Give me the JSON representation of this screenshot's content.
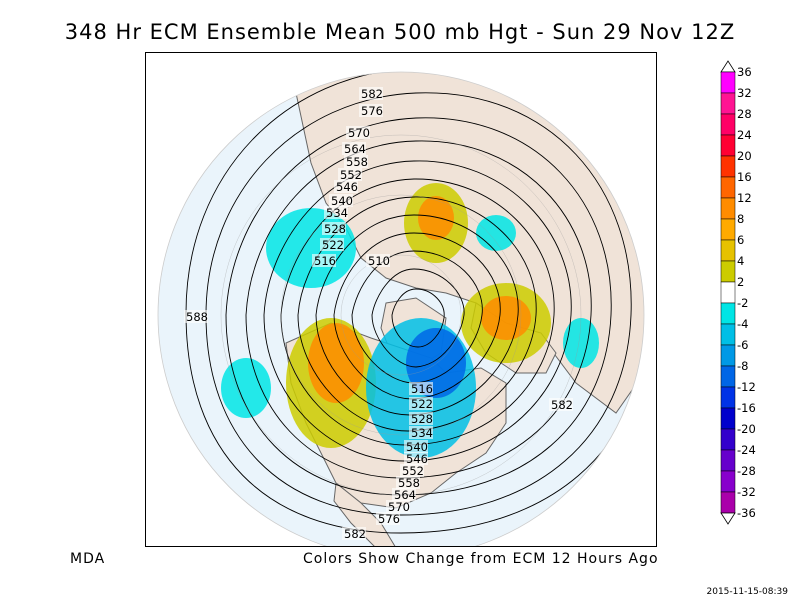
{
  "title": "348 Hr ECM Ensemble Mean 500 mb Hgt - Sun 29 Nov 12Z",
  "footer": {
    "source": "MDA",
    "caption": "Colors Show Change from ECM 12 Hours Ago",
    "timestamp": "2015-11-15-08:39"
  },
  "colorbar": {
    "labels": [
      "36",
      "32",
      "28",
      "24",
      "20",
      "16",
      "12",
      "8",
      "6",
      "4",
      "2",
      "-2",
      "-4",
      "-6",
      "-8",
      "-12",
      "-16",
      "-20",
      "-24",
      "-28",
      "-32",
      "-36"
    ],
    "colors": [
      "#ff00ff",
      "#ff1493",
      "#ff0066",
      "#ff0033",
      "#ff3300",
      "#ff6600",
      "#ff8c00",
      "#ffaa00",
      "#e6c200",
      "#cccc00",
      "#ffffff",
      "#00e5e5",
      "#00bfe6",
      "#0099e6",
      "#0066e6",
      "#0033e6",
      "#0000cc",
      "#3300cc",
      "#6600cc",
      "#8800cc",
      "#aa00aa"
    ]
  },
  "map": {
    "background_ocean": "#eaf4fb",
    "land": "#f0e3d8",
    "contour_labels": [
      {
        "text": "582",
        "pos": "north"
      },
      {
        "text": "576",
        "pos": "north"
      },
      {
        "text": "570",
        "pos": "north"
      },
      {
        "text": "564",
        "pos": "north"
      },
      {
        "text": "558",
        "pos": "north"
      },
      {
        "text": "552",
        "pos": "north"
      },
      {
        "text": "546",
        "pos": "north"
      },
      {
        "text": "540",
        "pos": "north"
      },
      {
        "text": "534",
        "pos": "north"
      },
      {
        "text": "528",
        "pos": "north"
      },
      {
        "text": "522",
        "pos": "north"
      },
      {
        "text": "516",
        "pos": "north"
      },
      {
        "text": "510",
        "pos": "center"
      },
      {
        "text": "588",
        "pos": "west"
      },
      {
        "text": "516",
        "pos": "south"
      },
      {
        "text": "522",
        "pos": "south"
      },
      {
        "text": "528",
        "pos": "south"
      },
      {
        "text": "534",
        "pos": "south"
      },
      {
        "text": "540",
        "pos": "south"
      },
      {
        "text": "546",
        "pos": "south"
      },
      {
        "text": "552",
        "pos": "south"
      },
      {
        "text": "558",
        "pos": "south"
      },
      {
        "text": "564",
        "pos": "south"
      },
      {
        "text": "570",
        "pos": "south"
      },
      {
        "text": "576",
        "pos": "south"
      },
      {
        "text": "582",
        "pos": "south"
      },
      {
        "text": "582",
        "pos": "east"
      }
    ]
  }
}
